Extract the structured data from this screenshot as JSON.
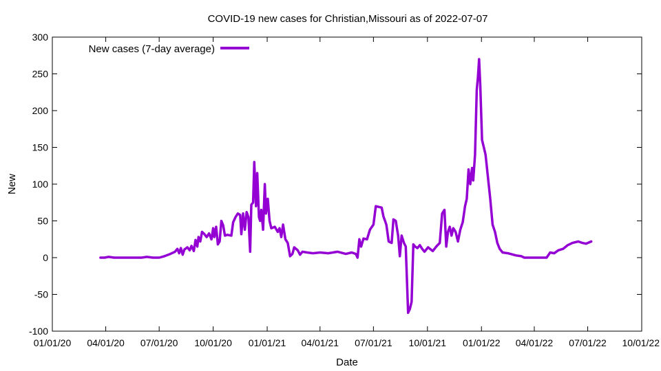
{
  "chart_data": {
    "type": "line",
    "title": "COVID-19 new cases for Christian,Missouri as of 2022-07-07",
    "xlabel": "Date",
    "ylabel": "New",
    "ylim": [
      -100,
      300
    ],
    "yticks": [
      -100,
      -50,
      0,
      50,
      100,
      150,
      200,
      250,
      300
    ],
    "ytick_labels": [
      "-100",
      "-50",
      "0",
      "50",
      "100",
      "150",
      "200",
      "250",
      "300"
    ],
    "xlim": [
      "2020-01-01",
      "2022-10-01"
    ],
    "xticks": [
      "2020-01-01",
      "2020-04-01",
      "2020-07-01",
      "2020-10-01",
      "2021-01-01",
      "2021-04-01",
      "2021-07-01",
      "2021-10-01",
      "2022-01-01",
      "2022-04-01",
      "2022-07-01",
      "2022-10-01"
    ],
    "xtick_labels": [
      "01/01/20",
      "04/01/20",
      "07/01/20",
      "10/01/20",
      "01/01/21",
      "04/01/21",
      "07/01/21",
      "10/01/21",
      "01/01/22",
      "04/01/22",
      "07/01/22",
      "10/01/22"
    ],
    "grid": false,
    "legend_position": "top-left",
    "series": [
      {
        "name": "New cases (7-day average)",
        "color": "#9400d3",
        "points": [
          [
            "2020-03-23",
            0
          ],
          [
            "2020-03-30",
            0
          ],
          [
            "2020-04-06",
            1
          ],
          [
            "2020-04-15",
            0
          ],
          [
            "2020-05-01",
            0
          ],
          [
            "2020-05-15",
            0
          ],
          [
            "2020-06-01",
            0
          ],
          [
            "2020-06-10",
            1
          ],
          [
            "2020-06-20",
            0
          ],
          [
            "2020-07-01",
            0
          ],
          [
            "2020-07-10",
            2
          ],
          [
            "2020-07-20",
            5
          ],
          [
            "2020-07-28",
            8
          ],
          [
            "2020-08-01",
            12
          ],
          [
            "2020-08-04",
            6
          ],
          [
            "2020-08-07",
            13
          ],
          [
            "2020-08-10",
            4
          ],
          [
            "2020-08-13",
            11
          ],
          [
            "2020-08-18",
            14
          ],
          [
            "2020-08-22",
            10
          ],
          [
            "2020-08-25",
            16
          ],
          [
            "2020-08-29",
            9
          ],
          [
            "2020-09-01",
            24
          ],
          [
            "2020-09-04",
            15
          ],
          [
            "2020-09-06",
            28
          ],
          [
            "2020-09-09",
            22
          ],
          [
            "2020-09-12",
            35
          ],
          [
            "2020-09-16",
            32
          ],
          [
            "2020-09-20",
            28
          ],
          [
            "2020-09-24",
            33
          ],
          [
            "2020-09-28",
            25
          ],
          [
            "2020-10-01",
            40
          ],
          [
            "2020-10-03",
            28
          ],
          [
            "2020-10-06",
            42
          ],
          [
            "2020-10-09",
            18
          ],
          [
            "2020-10-12",
            22
          ],
          [
            "2020-10-15",
            50
          ],
          [
            "2020-10-18",
            44
          ],
          [
            "2020-10-21",
            30
          ],
          [
            "2020-10-25",
            31
          ],
          [
            "2020-11-01",
            30
          ],
          [
            "2020-11-04",
            48
          ],
          [
            "2020-11-08",
            55
          ],
          [
            "2020-11-12",
            60
          ],
          [
            "2020-11-16",
            58
          ],
          [
            "2020-11-18",
            32
          ],
          [
            "2020-11-21",
            60
          ],
          [
            "2020-11-24",
            38
          ],
          [
            "2020-11-27",
            62
          ],
          [
            "2020-11-30",
            55
          ],
          [
            "2020-12-03",
            8
          ],
          [
            "2020-12-05",
            72
          ],
          [
            "2020-12-08",
            75
          ],
          [
            "2020-12-10",
            130
          ],
          [
            "2020-12-13",
            70
          ],
          [
            "2020-12-15",
            115
          ],
          [
            "2020-12-18",
            55
          ],
          [
            "2020-12-20",
            50
          ],
          [
            "2020-12-22",
            65
          ],
          [
            "2020-12-25",
            38
          ],
          [
            "2020-12-28",
            100
          ],
          [
            "2020-12-30",
            60
          ],
          [
            "2021-01-02",
            80
          ],
          [
            "2021-01-05",
            50
          ],
          [
            "2021-01-08",
            40
          ],
          [
            "2021-01-14",
            42
          ],
          [
            "2021-01-19",
            35
          ],
          [
            "2021-01-22",
            40
          ],
          [
            "2021-01-25",
            28
          ],
          [
            "2021-01-28",
            45
          ],
          [
            "2021-02-01",
            25
          ],
          [
            "2021-02-05",
            20
          ],
          [
            "2021-02-09",
            2
          ],
          [
            "2021-02-13",
            5
          ],
          [
            "2021-02-16",
            14
          ],
          [
            "2021-02-22",
            10
          ],
          [
            "2021-02-26",
            4
          ],
          [
            "2021-03-02",
            8
          ],
          [
            "2021-03-10",
            7
          ],
          [
            "2021-03-20",
            6
          ],
          [
            "2021-04-01",
            7
          ],
          [
            "2021-04-15",
            6
          ],
          [
            "2021-05-01",
            8
          ],
          [
            "2021-05-15",
            5
          ],
          [
            "2021-05-25",
            7
          ],
          [
            "2021-06-01",
            5
          ],
          [
            "2021-06-04",
            0
          ],
          [
            "2021-06-07",
            25
          ],
          [
            "2021-06-10",
            15
          ],
          [
            "2021-06-14",
            26
          ],
          [
            "2021-06-20",
            25
          ],
          [
            "2021-06-25",
            38
          ],
          [
            "2021-07-01",
            45
          ],
          [
            "2021-07-05",
            70
          ],
          [
            "2021-07-10",
            69
          ],
          [
            "2021-07-15",
            68
          ],
          [
            "2021-07-18",
            56
          ],
          [
            "2021-07-23",
            45
          ],
          [
            "2021-07-27",
            22
          ],
          [
            "2021-08-01",
            20
          ],
          [
            "2021-08-04",
            52
          ],
          [
            "2021-08-08",
            50
          ],
          [
            "2021-08-12",
            30
          ],
          [
            "2021-08-15",
            2
          ],
          [
            "2021-08-18",
            30
          ],
          [
            "2021-08-22",
            20
          ],
          [
            "2021-08-25",
            15
          ],
          [
            "2021-08-29",
            -75
          ],
          [
            "2021-09-01",
            -70
          ],
          [
            "2021-09-04",
            -60
          ],
          [
            "2021-09-07",
            18
          ],
          [
            "2021-09-10",
            15
          ],
          [
            "2021-09-14",
            13
          ],
          [
            "2021-09-18",
            17
          ],
          [
            "2021-09-22",
            12
          ],
          [
            "2021-09-26",
            8
          ],
          [
            "2021-10-02",
            14
          ],
          [
            "2021-10-10",
            9
          ],
          [
            "2021-10-16",
            15
          ],
          [
            "2021-10-22",
            20
          ],
          [
            "2021-10-26",
            60
          ],
          [
            "2021-10-30",
            65
          ],
          [
            "2021-11-02",
            15
          ],
          [
            "2021-11-05",
            35
          ],
          [
            "2021-11-08",
            42
          ],
          [
            "2021-11-11",
            30
          ],
          [
            "2021-11-14",
            40
          ],
          [
            "2021-11-18",
            35
          ],
          [
            "2021-11-22",
            22
          ],
          [
            "2021-11-26",
            38
          ],
          [
            "2021-11-30",
            48
          ],
          [
            "2021-12-04",
            70
          ],
          [
            "2021-12-07",
            80
          ],
          [
            "2021-12-10",
            120
          ],
          [
            "2021-12-13",
            100
          ],
          [
            "2021-12-16",
            122
          ],
          [
            "2021-12-18",
            105
          ],
          [
            "2021-12-21",
            140
          ],
          [
            "2021-12-24",
            228
          ],
          [
            "2021-12-26",
            245
          ],
          [
            "2021-12-28",
            270
          ],
          [
            "2021-12-30",
            235
          ],
          [
            "2022-01-02",
            160
          ],
          [
            "2022-01-05",
            150
          ],
          [
            "2022-01-08",
            140
          ],
          [
            "2022-01-12",
            110
          ],
          [
            "2022-01-16",
            80
          ],
          [
            "2022-01-20",
            45
          ],
          [
            "2022-01-24",
            35
          ],
          [
            "2022-01-28",
            20
          ],
          [
            "2022-02-01",
            12
          ],
          [
            "2022-02-06",
            7
          ],
          [
            "2022-02-15",
            6
          ],
          [
            "2022-03-01",
            3
          ],
          [
            "2022-03-10",
            2
          ],
          [
            "2022-03-15",
            0
          ],
          [
            "2022-03-25",
            0
          ],
          [
            "2022-04-05",
            0
          ],
          [
            "2022-04-15",
            0
          ],
          [
            "2022-04-22",
            0
          ],
          [
            "2022-04-28",
            7
          ],
          [
            "2022-05-05",
            6
          ],
          [
            "2022-05-12",
            10
          ],
          [
            "2022-05-20",
            12
          ],
          [
            "2022-05-28",
            17
          ],
          [
            "2022-06-05",
            20
          ],
          [
            "2022-06-15",
            22
          ],
          [
            "2022-06-22",
            20
          ],
          [
            "2022-06-28",
            19
          ],
          [
            "2022-07-07",
            22
          ]
        ]
      }
    ]
  }
}
